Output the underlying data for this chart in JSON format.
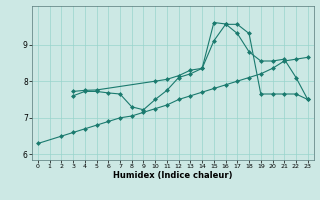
{
  "xlabel": "Humidex (Indice chaleur)",
  "bg_color": "#cce8e4",
  "grid_color": "#99d4cc",
  "line_color": "#1a7a6e",
  "line1": {
    "x": [
      0,
      2,
      3,
      4,
      5,
      6,
      7,
      8,
      9,
      10,
      11,
      12,
      13,
      14,
      15,
      16,
      17,
      18,
      19,
      20,
      21,
      22,
      23
    ],
    "y": [
      6.3,
      6.5,
      6.6,
      6.7,
      6.8,
      6.9,
      7.0,
      7.05,
      7.15,
      7.25,
      7.35,
      7.5,
      7.6,
      7.7,
      7.8,
      7.9,
      8.0,
      8.1,
      8.2,
      8.35,
      8.55,
      8.6,
      8.65
    ]
  },
  "line2": {
    "x": [
      3,
      4,
      5,
      6,
      7,
      8,
      9,
      10,
      11,
      12,
      13,
      14,
      15,
      16,
      17,
      18,
      19,
      20,
      21,
      22,
      23
    ],
    "y": [
      7.6,
      7.72,
      7.72,
      7.68,
      7.65,
      7.3,
      7.22,
      7.5,
      7.75,
      8.1,
      8.2,
      8.35,
      9.1,
      9.55,
      9.55,
      9.3,
      7.65,
      7.65,
      7.65,
      7.65,
      7.5
    ]
  },
  "line3": {
    "x": [
      3,
      4,
      5,
      10,
      11,
      12,
      13,
      14,
      15,
      16,
      17,
      18,
      19,
      20,
      21,
      22,
      23
    ],
    "y": [
      7.72,
      7.75,
      7.76,
      8.0,
      8.05,
      8.15,
      8.3,
      8.35,
      9.6,
      9.56,
      9.3,
      8.8,
      8.55,
      8.55,
      8.6,
      8.1,
      7.5
    ]
  },
  "xlim": [
    -0.5,
    23.5
  ],
  "ylim": [
    5.85,
    10.05
  ],
  "yticks": [
    6,
    7,
    8,
    9
  ],
  "xticks": [
    0,
    1,
    2,
    3,
    4,
    5,
    6,
    7,
    8,
    9,
    10,
    11,
    12,
    13,
    14,
    15,
    16,
    17,
    18,
    19,
    20,
    21,
    22,
    23
  ]
}
